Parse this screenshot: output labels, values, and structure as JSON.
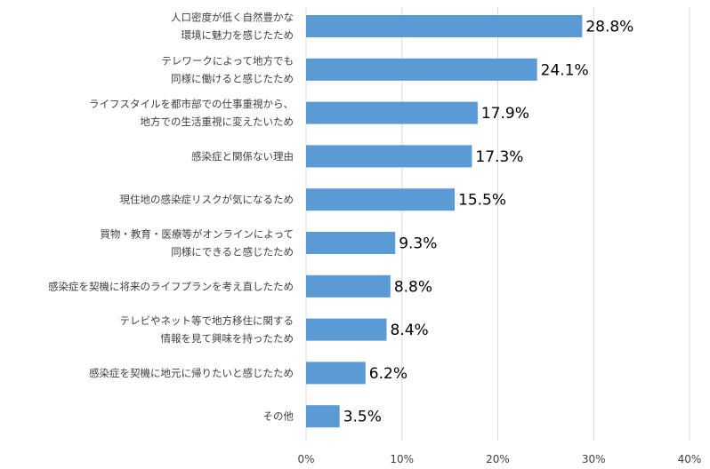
{
  "chart_data": {
    "type": "bar",
    "orientation": "horizontal",
    "categories": [
      [
        "人口密度が低く自然豊かな",
        "環境に魅力を感じたため"
      ],
      [
        "テレワークによって地方でも",
        "同様に働けると感じたため"
      ],
      [
        "ライフスタイルを都市部での仕事重視から、",
        "地方での生活重視に変えたいため"
      ],
      [
        "感染症と関係ない理由"
      ],
      [
        "現住地の感染症リスクが気になるため"
      ],
      [
        "買物・教育・医療等がオンラインによって",
        "同様にできると感じたため"
      ],
      [
        "感染症を契機に将来のライフプランを考え直したため"
      ],
      [
        "テレビやネット等で地方移住に関する",
        "情報を見て興味を持ったため"
      ],
      [
        "感染症を契機に地元に帰りたいと感じたため"
      ],
      [
        "その他"
      ]
    ],
    "values": [
      28.8,
      24.1,
      17.9,
      17.3,
      15.5,
      9.3,
      8.8,
      8.4,
      6.2,
      3.5
    ],
    "value_labels": [
      "28.8%",
      "24.1%",
      "17.9%",
      "17.3%",
      "15.5%",
      "9.3%",
      "8.8%",
      "8.4%",
      "6.2%",
      "3.5%"
    ],
    "xlim": [
      0,
      40
    ],
    "x_ticks": [
      0,
      10,
      20,
      30,
      40
    ],
    "x_tick_labels": [
      "0%",
      "10%",
      "20%",
      "30%",
      "40%"
    ],
    "grid": true,
    "colors": {
      "bar": "#5b9bd5",
      "grid": "#d9d9d9"
    }
  }
}
